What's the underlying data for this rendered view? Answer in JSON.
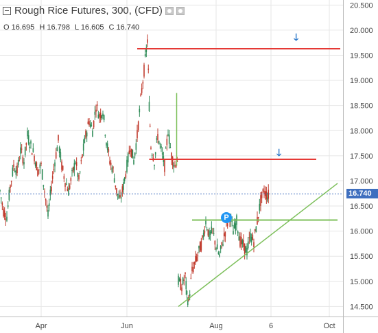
{
  "header": {
    "title": "Rough Rice Futures, 300, (CFD)",
    "ohlc": {
      "o": "O 16.695",
      "h": "H 16.798",
      "l": "L 16.605",
      "c": "C 16.740"
    }
  },
  "last_price_label": "16.740",
  "pivot_label": "P",
  "colors": {
    "up": "#2e8b57",
    "down": "#c0392b",
    "resistance": "#e53935",
    "support": "#7cbf5a",
    "last_price": "#3f6fbf",
    "pivot": "#2196f3",
    "arrow": "#2a77c9",
    "grid": "#e6e6e6",
    "axis_text": "#444444"
  },
  "icons": {
    "collapse": "minus-box-icon",
    "settings": "gear-icon",
    "close": "circle-icon",
    "down_arrow": "down-arrow-icon"
  },
  "chart_data": {
    "type": "candlestick",
    "title": "Rough Rice Futures, 300, (CFD)",
    "y_axis": {
      "min": 14.3,
      "max": 20.6,
      "ticks": [
        14.5,
        15.0,
        15.5,
        16.0,
        16.5,
        17.0,
        17.5,
        18.0,
        18.5,
        19.0,
        19.5,
        20.0,
        20.5
      ],
      "tick_labels": [
        "14.500",
        "15.000",
        "15.500",
        "16.000",
        "16.500",
        "17.000",
        "17.500",
        "18.000",
        "18.500",
        "19.000",
        "19.500",
        "20.000",
        "20.500"
      ]
    },
    "x_axis": {
      "labels": [
        "Apr",
        "Jun",
        "Aug",
        "6",
        "Oct"
      ],
      "label_pos": [
        0.12,
        0.37,
        0.63,
        0.79,
        0.96
      ]
    },
    "grid": true,
    "last_price": 16.74,
    "price_path": [
      [
        0.0,
        16.8
      ],
      [
        0.01,
        16.4
      ],
      [
        0.02,
        16.3
      ],
      [
        0.03,
        16.9
      ],
      [
        0.04,
        17.3
      ],
      [
        0.05,
        17.2
      ],
      [
        0.06,
        17.6
      ],
      [
        0.07,
        17.4
      ],
      [
        0.08,
        17.9
      ],
      [
        0.09,
        17.7
      ],
      [
        0.1,
        17.5
      ],
      [
        0.11,
        17.2
      ],
      [
        0.12,
        17.3
      ],
      [
        0.13,
        16.8
      ],
      [
        0.14,
        16.3
      ],
      [
        0.15,
        16.9
      ],
      [
        0.16,
        17.4
      ],
      [
        0.17,
        17.8
      ],
      [
        0.18,
        17.3
      ],
      [
        0.19,
        17.0
      ],
      [
        0.2,
        16.8
      ],
      [
        0.21,
        17.1
      ],
      [
        0.22,
        17.4
      ],
      [
        0.23,
        17.0
      ],
      [
        0.24,
        17.5
      ],
      [
        0.25,
        17.9
      ],
      [
        0.26,
        18.2
      ],
      [
        0.27,
        18.0
      ],
      [
        0.28,
        18.5
      ],
      [
        0.29,
        18.3
      ],
      [
        0.3,
        18.4
      ],
      [
        0.31,
        17.8
      ],
      [
        0.32,
        17.4
      ],
      [
        0.33,
        17.2
      ],
      [
        0.34,
        16.8
      ],
      [
        0.35,
        16.6
      ],
      [
        0.36,
        16.9
      ],
      [
        0.37,
        17.3
      ],
      [
        0.38,
        17.7
      ],
      [
        0.39,
        17.4
      ],
      [
        0.4,
        17.9
      ],
      [
        0.41,
        18.6
      ],
      [
        0.42,
        19.2
      ],
      [
        0.43,
        19.8
      ],
      [
        0.435,
        18.5
      ],
      [
        0.44,
        17.7
      ],
      [
        0.45,
        17.4
      ],
      [
        0.46,
        17.9
      ],
      [
        0.47,
        17.6
      ],
      [
        0.48,
        17.3
      ],
      [
        0.49,
        18.0
      ],
      [
        0.5,
        17.5
      ],
      [
        0.51,
        17.3
      ],
      [
        0.52,
        17.5
      ]
    ],
    "price_path_2": [
      [
        0.52,
        15.0
      ],
      [
        0.53,
        14.9
      ],
      [
        0.54,
        15.1
      ],
      [
        0.545,
        14.7
      ],
      [
        0.55,
        14.6
      ],
      [
        0.56,
        15.2
      ],
      [
        0.57,
        15.4
      ],
      [
        0.58,
        15.6
      ],
      [
        0.59,
        15.8
      ],
      [
        0.6,
        16.2
      ],
      [
        0.61,
        15.9
      ],
      [
        0.62,
        16.0
      ],
      [
        0.63,
        15.7
      ],
      [
        0.64,
        15.5
      ],
      [
        0.65,
        15.8
      ],
      [
        0.66,
        16.1
      ],
      [
        0.67,
        16.3
      ],
      [
        0.68,
        16.0
      ],
      [
        0.69,
        16.2
      ],
      [
        0.7,
        15.8
      ],
      [
        0.71,
        15.7
      ],
      [
        0.72,
        15.6
      ],
      [
        0.73,
        15.9
      ],
      [
        0.74,
        15.8
      ],
      [
        0.75,
        16.2
      ],
      [
        0.76,
        16.6
      ],
      [
        0.77,
        16.8
      ],
      [
        0.78,
        16.7
      ],
      [
        0.785,
        16.74
      ]
    ],
    "resistance_levels": [
      {
        "value": 19.63,
        "x_start": 0.4,
        "x_end": 1.0
      },
      {
        "value": 17.43,
        "x_start": 0.435,
        "x_end": 0.93
      }
    ],
    "support_levels": [
      {
        "value": 16.22,
        "x_start": 0.56,
        "x_end": 1.0
      }
    ],
    "trendline": {
      "from": [
        0.52,
        14.5
      ],
      "to": [
        1.0,
        16.95
      ]
    },
    "spike": {
      "x": 0.515,
      "high": 18.75,
      "low": 17.3
    }
  }
}
